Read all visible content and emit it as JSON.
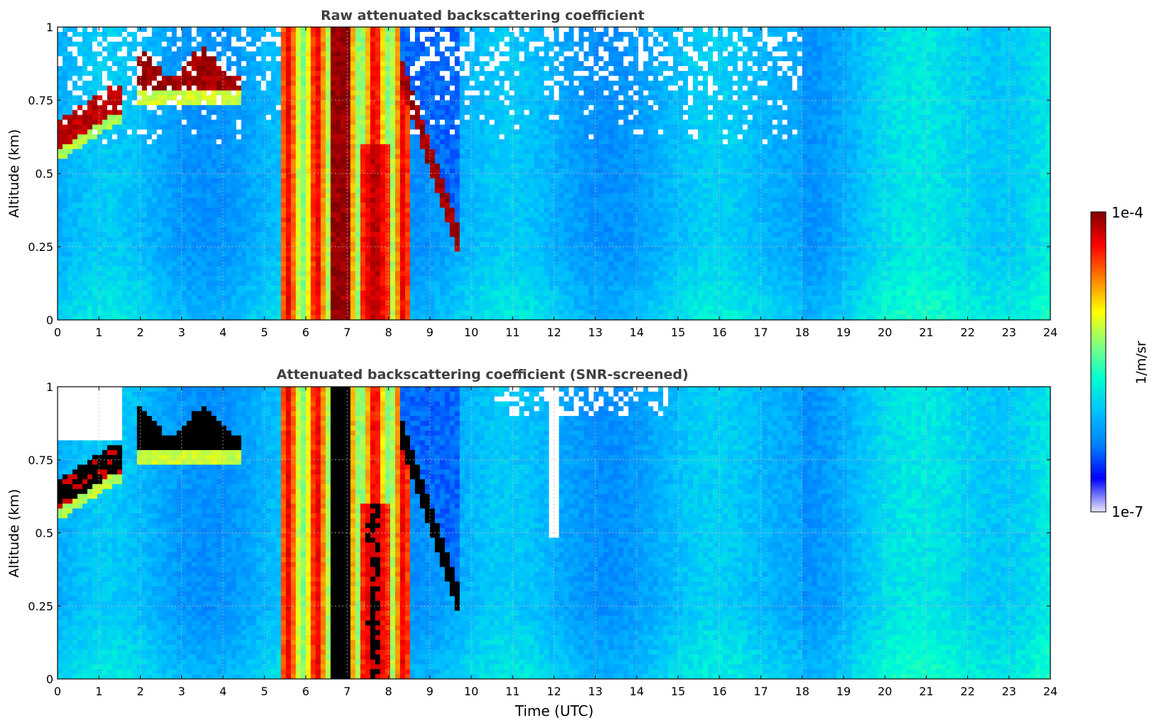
{
  "chart_data": [
    {
      "type": "heatmap",
      "title": "Raw attenuated backscattering coefficient",
      "xlabel": "",
      "ylabel": "Altitude (km)",
      "xlim": [
        0,
        24
      ],
      "ylim": [
        0,
        1
      ],
      "x_ticks": [
        "0",
        "1",
        "2",
        "3",
        "4",
        "5",
        "6",
        "7",
        "8",
        "9",
        "10",
        "11",
        "12",
        "13",
        "14",
        "15",
        "16",
        "17",
        "18",
        "19",
        "20",
        "21",
        "22",
        "23",
        "24"
      ],
      "y_ticks": [
        "0",
        "0.25",
        "0.5",
        "0.75",
        "1"
      ],
      "grid": true,
      "color_scale": "log",
      "colormap": "jet",
      "features": {
        "cloud_low_0_1h_top_km": [
          0.58,
          0.72
        ],
        "cloud_2_4h_base_km": 0.78,
        "dense_column_6_8h": true,
        "descending_layer_8_10h_base_km": [
          0.8,
          0.2
        ],
        "noise_above_km": 0.6
      }
    },
    {
      "type": "heatmap",
      "title": "Attenuated backscattering coefficient (SNR-screened)",
      "xlabel": "Time (UTC)",
      "ylabel": "Altitude (km)",
      "xlim": [
        0,
        24
      ],
      "ylim": [
        0,
        1
      ],
      "x_ticks": [
        "0",
        "1",
        "2",
        "3",
        "4",
        "5",
        "6",
        "7",
        "8",
        "9",
        "10",
        "11",
        "12",
        "13",
        "14",
        "15",
        "16",
        "17",
        "18",
        "19",
        "20",
        "21",
        "22",
        "23",
        "24"
      ],
      "y_ticks": [
        "0",
        "0.25",
        "0.5",
        "0.75",
        "1"
      ],
      "grid": true,
      "color_scale": "log",
      "colormap": "jet",
      "masked_color": "#ffffff",
      "saturated_color": "#000000"
    }
  ],
  "colorbar": {
    "max_label": "1e-4",
    "min_label": "1e-7",
    "unit": "1/m/sr",
    "vmin": 1e-07,
    "vmax": 0.0001,
    "stops": [
      "#e8e8f8",
      "#0000ff",
      "#0080ff",
      "#00c0ff",
      "#00ffd0",
      "#80ff80",
      "#ffff00",
      "#ff8000",
      "#ff0000",
      "#800000"
    ]
  }
}
